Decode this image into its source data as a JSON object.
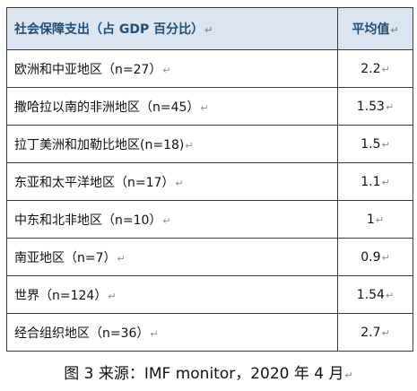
{
  "table": {
    "headers": {
      "region": "社会保障支出（占 GDP 百分比）",
      "average": "平均值"
    },
    "rows": [
      {
        "region": "欧洲和中亚地区（n=27）",
        "value": "2.2"
      },
      {
        "region": "撒哈拉以南的非洲地区（n=45）",
        "value": "1.53"
      },
      {
        "region": "拉丁美洲和加勒比地区(n=18)",
        "value": "1.5"
      },
      {
        "region": "东亚和太平洋地区（n=17）",
        "value": "1.1"
      },
      {
        "region": "中东和北非地区（n=10）",
        "value": "1"
      },
      {
        "region": "南亚地区（n=7）",
        "value": "0.9"
      },
      {
        "region": "世界（n=124）",
        "value": "1.54"
      },
      {
        "region": "经合组织地区（n=36）",
        "value": "2.7"
      }
    ]
  },
  "paragraph_mark": "↵",
  "caption": "图 3 来源：IMF monitor，2020 年 4 月"
}
